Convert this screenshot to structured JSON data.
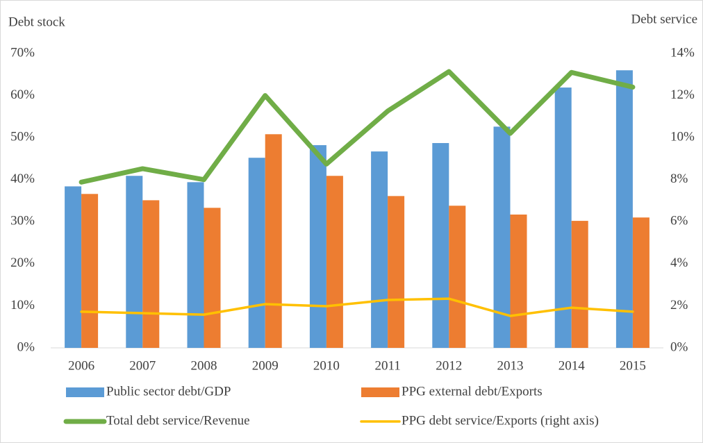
{
  "chart_data": {
    "type": "bar-line",
    "y_label": "Debt stock",
    "y2_label": "Debt service",
    "categories": [
      "2006",
      "2007",
      "2008",
      "2009",
      "2010",
      "2011",
      "2012",
      "2013",
      "2014",
      "2015"
    ],
    "series": [
      {
        "name": "Public sector debt/GDP",
        "type": "bar",
        "color": "#5b9bd5",
        "values": [
          38.4,
          40.9,
          39.4,
          45.2,
          48.2,
          46.7,
          48.7,
          52.6,
          61.9,
          66.0
        ]
      },
      {
        "name": "PPG external debt/Exports",
        "type": "bar",
        "color": "#ed7d31",
        "values": [
          36.6,
          35.1,
          33.3,
          50.8,
          40.9,
          36.1,
          33.8,
          31.7,
          30.2,
          31.0
        ]
      },
      {
        "name": "Total debt service/Revenue",
        "type": "line",
        "color": "#70ad47",
        "values": [
          39.4,
          42.6,
          40.0,
          60.0,
          43.7,
          56.3,
          65.7,
          51.0,
          65.5,
          62.0
        ]
      },
      {
        "name": "PPG debt service/Exports (right axis)",
        "type": "line",
        "color": "#ffc000",
        "axis": "y2",
        "values": [
          1.72,
          1.65,
          1.58,
          2.08,
          1.98,
          2.28,
          2.34,
          1.52,
          1.91,
          1.72
        ]
      }
    ],
    "ylim": [
      0,
      70
    ],
    "yticks": [
      {
        "value": 0,
        "label": "0%"
      },
      {
        "value": 10,
        "label": "10%"
      },
      {
        "value": 20,
        "label": "20%"
      },
      {
        "value": 30,
        "label": "30%"
      },
      {
        "value": 40,
        "label": "40%"
      },
      {
        "value": 50,
        "label": "50%"
      },
      {
        "value": 60,
        "label": "60%"
      },
      {
        "value": 70,
        "label": "70%"
      }
    ],
    "y2lim": [
      0,
      14
    ],
    "y2ticks": [
      {
        "value": 0,
        "label": "0%"
      },
      {
        "value": 2,
        "label": "2%"
      },
      {
        "value": 4,
        "label": "4%"
      },
      {
        "value": 6,
        "label": "6%"
      },
      {
        "value": 8,
        "label": "8%"
      },
      {
        "value": 10,
        "label": "10%"
      },
      {
        "value": 12,
        "label": "12%"
      },
      {
        "value": 14,
        "label": "14%"
      }
    ],
    "grid": false,
    "legend": "bottom"
  }
}
